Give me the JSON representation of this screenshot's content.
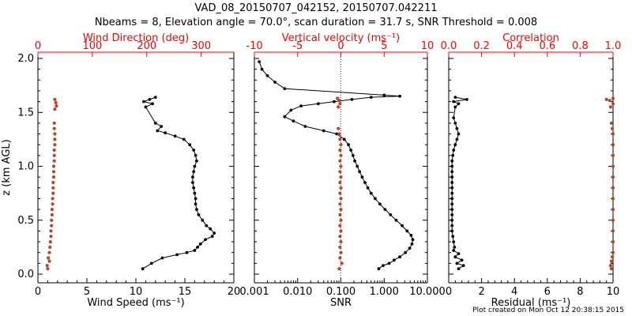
{
  "title": {
    "line1": "VAD_08_20150707_042152, 20150707.042211",
    "line2": "Nbeams = 8, Elevation angle = 70.0°, scan duration = 31.7 s, SNR Threshold = 0.008"
  },
  "footer": "Plot created on Mon Oct 12 20:38:15 2015",
  "colors": {
    "primary": "#000000",
    "secondary": "#ff0000",
    "marker": "#b5452b"
  },
  "chart_data": [
    {
      "type": "line",
      "panel": "left",
      "ylabel": "z (km AGL)",
      "ylim": [
        0.0,
        2.0
      ],
      "yticks": [
        "0.0",
        "0.5",
        "1.0",
        "1.5",
        "2.0"
      ],
      "xlabel": "Wind Speed (ms⁻¹)",
      "xlim": [
        0,
        20
      ],
      "xticks": [
        "0",
        "5",
        "10",
        "15",
        "20"
      ],
      "x2label": "Wind Direction (deg)",
      "x2lim": [
        0,
        360
      ],
      "x2ticks": [
        "0",
        "100",
        "200",
        "300"
      ],
      "series": [
        {
          "name": "Wind Speed",
          "axis": "bottom",
          "points": [
            [
              10.7,
              0.05
            ],
            [
              11.6,
              0.1
            ],
            [
              12.7,
              0.15
            ],
            [
              14.2,
              0.18
            ],
            [
              15.2,
              0.2
            ],
            [
              16.0,
              0.22
            ],
            [
              16.3,
              0.25
            ],
            [
              16.6,
              0.28
            ],
            [
              17.1,
              0.32
            ],
            [
              17.8,
              0.35
            ],
            [
              18.0,
              0.38
            ],
            [
              17.6,
              0.42
            ],
            [
              17.2,
              0.45
            ],
            [
              16.8,
              0.5
            ],
            [
              16.4,
              0.55
            ],
            [
              16.2,
              0.6
            ],
            [
              16.1,
              0.65
            ],
            [
              16.1,
              0.7
            ],
            [
              16.0,
              0.75
            ],
            [
              15.9,
              0.8
            ],
            [
              15.8,
              0.85
            ],
            [
              15.8,
              0.9
            ],
            [
              15.9,
              0.95
            ],
            [
              16.0,
              1.0
            ],
            [
              16.2,
              1.05
            ],
            [
              16.1,
              1.1
            ],
            [
              15.9,
              1.15
            ],
            [
              15.5,
              1.2
            ],
            [
              14.9,
              1.25
            ],
            [
              14.0,
              1.28
            ],
            [
              13.0,
              1.31
            ],
            [
              12.2,
              1.33
            ],
            [
              12.6,
              1.37
            ],
            [
              12.0,
              1.4
            ],
            [
              11.0,
              1.55
            ],
            [
              11.7,
              1.58
            ],
            [
              10.8,
              1.6
            ],
            [
              11.4,
              1.62
            ],
            [
              12.0,
              1.64
            ]
          ]
        },
        {
          "name": "Wind Direction",
          "axis": "top",
          "points": [
            [
              18,
              0.05
            ],
            [
              17,
              0.08
            ],
            [
              21,
              0.12
            ],
            [
              19,
              0.15
            ],
            [
              21,
              0.2
            ],
            [
              22,
              0.25
            ],
            [
              23,
              0.3
            ],
            [
              24,
              0.35
            ],
            [
              24,
              0.4
            ],
            [
              25,
              0.45
            ],
            [
              25,
              0.5
            ],
            [
              26,
              0.55
            ],
            [
              26,
              0.6
            ],
            [
              27,
              0.65
            ],
            [
              27,
              0.7
            ],
            [
              28,
              0.75
            ],
            [
              28,
              0.8
            ],
            [
              28,
              0.85
            ],
            [
              29,
              0.9
            ],
            [
              29,
              0.95
            ],
            [
              29,
              1.0
            ],
            [
              30,
              1.05
            ],
            [
              30,
              1.1
            ],
            [
              30,
              1.15
            ],
            [
              31,
              1.2
            ],
            [
              31,
              1.25
            ],
            [
              31,
              1.3
            ],
            [
              30,
              1.35
            ],
            [
              30,
              1.4
            ],
            [
              31,
              1.53
            ],
            [
              34,
              1.56
            ],
            [
              33,
              1.59
            ],
            [
              31,
              1.62
            ]
          ]
        }
      ]
    },
    {
      "type": "line",
      "panel": "middle",
      "xlabel": "SNR",
      "xscale": "log",
      "xlim": [
        0.001,
        10.0
      ],
      "xticks": [
        "0.001",
        "0.010",
        "0.100",
        "1.000",
        "10.000"
      ],
      "x2label": "Vertical velocity (ms⁻¹)",
      "x2lim": [
        -10,
        10
      ],
      "x2ticks": [
        "-10",
        "-5",
        "0",
        "5",
        "10"
      ],
      "zero_line": 0,
      "series": [
        {
          "name": "SNR",
          "axis": "bottom",
          "points": [
            [
              0.75,
              0.05
            ],
            [
              0.95,
              0.08
            ],
            [
              1.3,
              0.1
            ],
            [
              1.7,
              0.13
            ],
            [
              2.3,
              0.16
            ],
            [
              3.1,
              0.2
            ],
            [
              3.9,
              0.24
            ],
            [
              4.4,
              0.28
            ],
            [
              4.6,
              0.32
            ],
            [
              4.2,
              0.36
            ],
            [
              3.4,
              0.4
            ],
            [
              2.6,
              0.45
            ],
            [
              1.9,
              0.5
            ],
            [
              1.4,
              0.55
            ],
            [
              1.05,
              0.6
            ],
            [
              0.8,
              0.65
            ],
            [
              0.62,
              0.7
            ],
            [
              0.5,
              0.75
            ],
            [
              0.42,
              0.8
            ],
            [
              0.36,
              0.85
            ],
            [
              0.31,
              0.9
            ],
            [
              0.27,
              0.95
            ],
            [
              0.24,
              1.0
            ],
            [
              0.21,
              1.05
            ],
            [
              0.19,
              1.1
            ],
            [
              0.17,
              1.15
            ],
            [
              0.15,
              1.2
            ],
            [
              0.12,
              1.25
            ],
            [
              0.08,
              1.3
            ],
            [
              0.04,
              1.33
            ],
            [
              0.015,
              1.37
            ],
            [
              0.008,
              1.42
            ],
            [
              0.005,
              1.46
            ],
            [
              0.007,
              1.52
            ],
            [
              0.012,
              1.56
            ],
            [
              0.03,
              1.58
            ],
            [
              0.07,
              1.6
            ],
            [
              0.18,
              1.62
            ],
            [
              0.5,
              1.64
            ],
            [
              2.3,
              1.65
            ],
            [
              1.0,
              1.66
            ],
            [
              0.005,
              1.72
            ],
            [
              0.003,
              1.78
            ],
            [
              0.002,
              1.84
            ],
            [
              0.0015,
              1.9
            ],
            [
              0.0013,
              1.97
            ]
          ]
        },
        {
          "name": "Vertical velocity",
          "axis": "top",
          "points": [
            [
              -0.2,
              0.05
            ],
            [
              0.1,
              0.1
            ],
            [
              -0.1,
              0.15
            ],
            [
              0.0,
              0.2
            ],
            [
              -0.1,
              0.25
            ],
            [
              0.0,
              0.3
            ],
            [
              -0.1,
              0.35
            ],
            [
              0.0,
              0.4
            ],
            [
              -0.1,
              0.45
            ],
            [
              0.0,
              0.5
            ],
            [
              -0.1,
              0.55
            ],
            [
              0.0,
              0.6
            ],
            [
              -0.1,
              0.65
            ],
            [
              0.0,
              0.7
            ],
            [
              -0.1,
              0.75
            ],
            [
              0.0,
              0.8
            ],
            [
              -0.1,
              0.85
            ],
            [
              0.0,
              0.9
            ],
            [
              -0.1,
              0.95
            ],
            [
              0.0,
              1.0
            ],
            [
              -0.1,
              1.05
            ],
            [
              0.0,
              1.1
            ],
            [
              -0.1,
              1.15
            ],
            [
              0.0,
              1.2
            ],
            [
              -0.1,
              1.25
            ],
            [
              -0.2,
              1.3
            ],
            [
              -0.3,
              1.35
            ],
            [
              -0.3,
              1.55
            ],
            [
              -0.1,
              1.58
            ],
            [
              -0.2,
              1.61
            ],
            [
              -0.4,
              1.63
            ]
          ]
        }
      ]
    },
    {
      "type": "line",
      "panel": "right",
      "xlabel": "Residual (ms⁻¹)",
      "xlim": [
        0,
        10
      ],
      "xticks": [
        "0",
        "2",
        "4",
        "6",
        "8",
        "10"
      ],
      "x2label": "Correlation",
      "x2lim": [
        0.0,
        1.0
      ],
      "x2ticks": [
        "0.0",
        "0.2",
        "0.4",
        "0.6",
        "0.8",
        "1.0"
      ],
      "series": [
        {
          "name": "Residual",
          "axis": "bottom",
          "points": [
            [
              0.6,
              0.05
            ],
            [
              0.9,
              0.08
            ],
            [
              0.5,
              0.1
            ],
            [
              0.8,
              0.13
            ],
            [
              0.4,
              0.16
            ],
            [
              0.6,
              0.19
            ],
            [
              0.3,
              0.22
            ],
            [
              0.35,
              0.25
            ],
            [
              0.3,
              0.3
            ],
            [
              0.25,
              0.35
            ],
            [
              0.2,
              0.4
            ],
            [
              0.2,
              0.45
            ],
            [
              0.2,
              0.5
            ],
            [
              0.2,
              0.55
            ],
            [
              0.2,
              0.6
            ],
            [
              0.2,
              0.65
            ],
            [
              0.2,
              0.7
            ],
            [
              0.2,
              0.75
            ],
            [
              0.2,
              0.8
            ],
            [
              0.2,
              0.85
            ],
            [
              0.2,
              0.9
            ],
            [
              0.2,
              0.95
            ],
            [
              0.2,
              1.0
            ],
            [
              0.2,
              1.05
            ],
            [
              0.25,
              1.1
            ],
            [
              0.3,
              1.15
            ],
            [
              0.4,
              1.2
            ],
            [
              0.5,
              1.25
            ],
            [
              0.6,
              1.3
            ],
            [
              0.5,
              1.35
            ],
            [
              0.4,
              1.4
            ],
            [
              0.3,
              1.45
            ],
            [
              0.4,
              1.55
            ],
            [
              0.6,
              1.58
            ],
            [
              0.3,
              1.6
            ],
            [
              1.1,
              1.62
            ],
            [
              0.4,
              1.64
            ]
          ]
        },
        {
          "name": "Correlation",
          "axis": "top",
          "points": [
            [
              0.99,
              0.05
            ],
            [
              0.985,
              0.08
            ],
            [
              0.99,
              0.12
            ],
            [
              0.995,
              0.16
            ],
            [
              1.0,
              0.2
            ],
            [
              1.0,
              0.3
            ],
            [
              1.0,
              0.4
            ],
            [
              1.0,
              0.5
            ],
            [
              1.0,
              0.6
            ],
            [
              1.0,
              0.7
            ],
            [
              1.0,
              0.8
            ],
            [
              1.0,
              0.9
            ],
            [
              1.0,
              1.0
            ],
            [
              1.0,
              1.1
            ],
            [
              1.0,
              1.2
            ],
            [
              1.0,
              1.3
            ],
            [
              0.995,
              1.35
            ],
            [
              0.99,
              1.4
            ],
            [
              0.985,
              1.55
            ],
            [
              1.0,
              1.58
            ],
            [
              0.98,
              1.61
            ],
            [
              0.96,
              1.62
            ],
            [
              1.0,
              1.63
            ]
          ]
        }
      ]
    }
  ]
}
